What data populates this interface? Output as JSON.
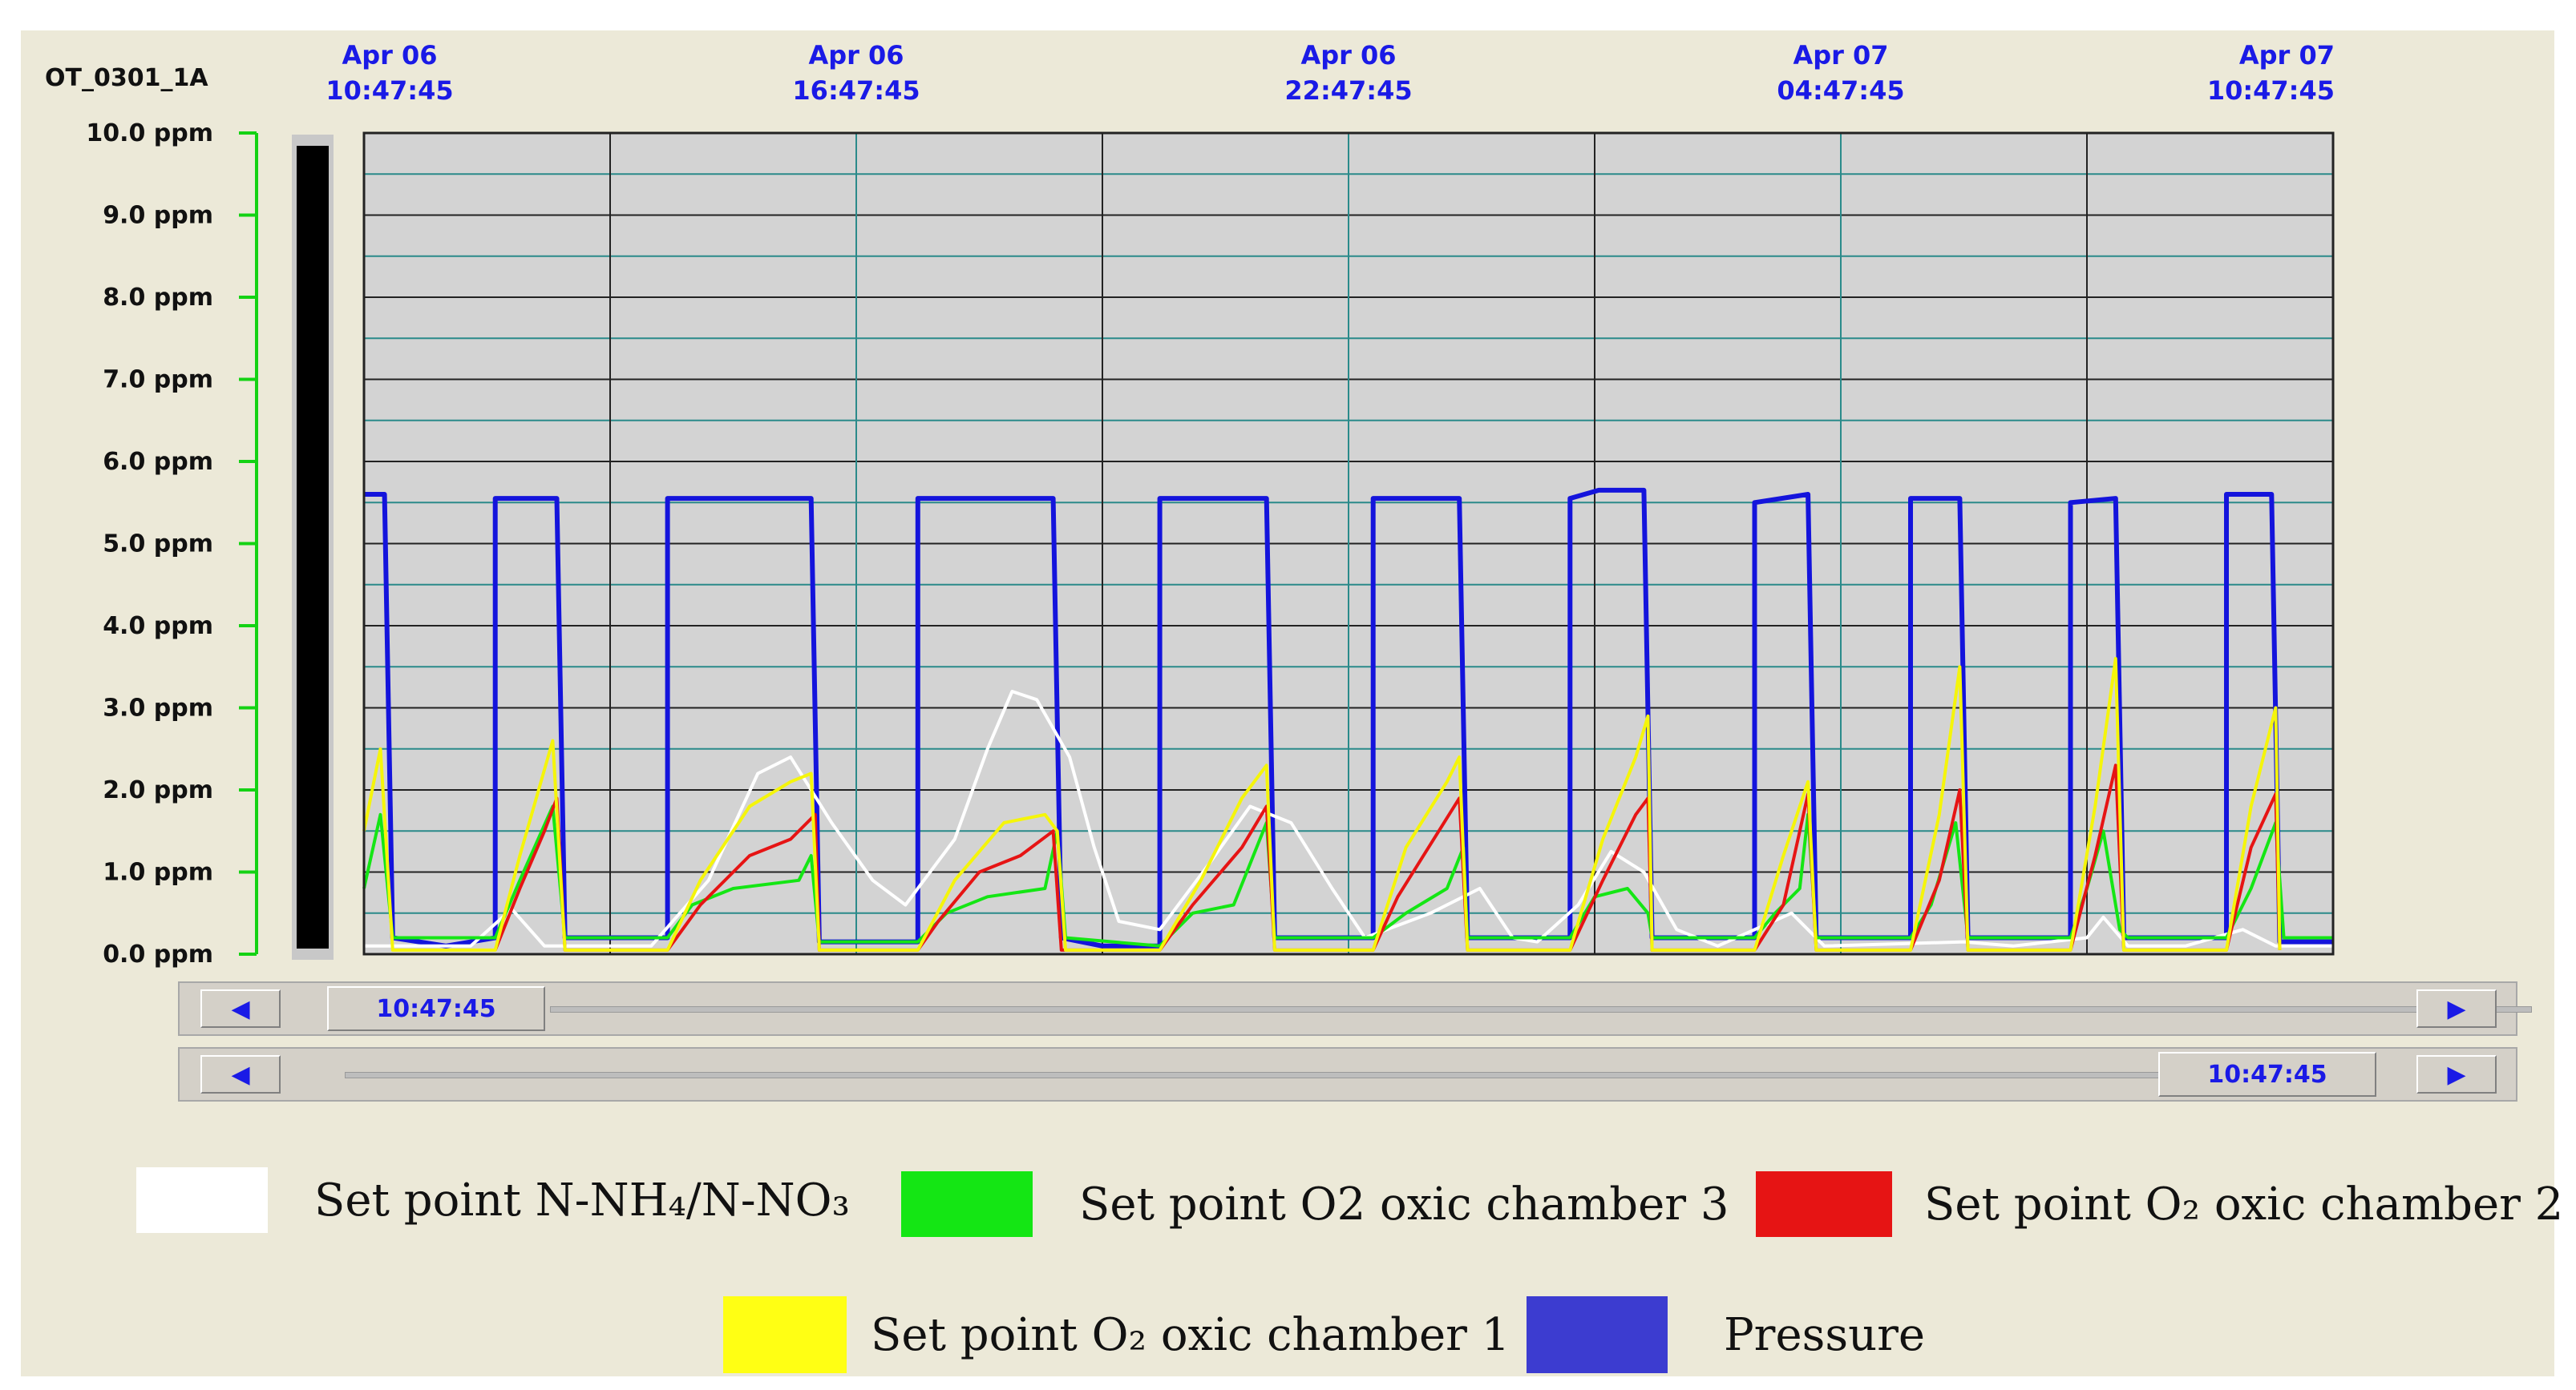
{
  "chart_data": {
    "type": "line",
    "title": "OT_0301_1A",
    "y_unit": "ppm",
    "ylim": [
      0,
      10
    ],
    "y_ticks": [
      "0.0 ppm",
      "1.0 ppm",
      "2.0 ppm",
      "3.0 ppm",
      "4.0 ppm",
      "5.0 ppm",
      "6.0 ppm",
      "7.0 ppm",
      "8.0 ppm",
      "9.0 ppm",
      "10.0 ppm"
    ],
    "x_ticks": [
      {
        "date": "Apr 06",
        "time": "10:47:45"
      },
      {
        "date": "Apr 06",
        "time": "16:47:45"
      },
      {
        "date": "Apr 06",
        "time": "22:47:45"
      },
      {
        "date": "Apr 07",
        "time": "04:47:45"
      },
      {
        "date": "Apr 07",
        "time": "10:47:45"
      }
    ],
    "x_range_hours": [
      0,
      24
    ],
    "grid": true,
    "legend_placement": "bottom",
    "series": [
      {
        "name": "Pressure",
        "color": "#1414dc",
        "points": [
          [
            0,
            5.6
          ],
          [
            0.25,
            5.6
          ],
          [
            0.35,
            0.2
          ],
          [
            1.0,
            0.1
          ],
          [
            1.6,
            0.2
          ],
          [
            1.6,
            5.55
          ],
          [
            2.35,
            5.55
          ],
          [
            2.45,
            0.2
          ],
          [
            3.7,
            0.2
          ],
          [
            3.7,
            5.55
          ],
          [
            5.45,
            5.55
          ],
          [
            5.55,
            0.15
          ],
          [
            6.75,
            0.15
          ],
          [
            6.75,
            5.55
          ],
          [
            8.4,
            5.55
          ],
          [
            8.5,
            0.2
          ],
          [
            9.0,
            0.1
          ],
          [
            9.7,
            0.1
          ],
          [
            9.7,
            5.55
          ],
          [
            11.0,
            5.55
          ],
          [
            11.1,
            0.2
          ],
          [
            12.3,
            0.2
          ],
          [
            12.3,
            5.55
          ],
          [
            13.35,
            5.55
          ],
          [
            13.45,
            0.2
          ],
          [
            14.7,
            0.2
          ],
          [
            14.7,
            5.55
          ],
          [
            15.05,
            5.65
          ],
          [
            15.6,
            5.65
          ],
          [
            15.7,
            0.2
          ],
          [
            16.95,
            0.2
          ],
          [
            16.95,
            5.5
          ],
          [
            17.6,
            5.6
          ],
          [
            17.7,
            0.2
          ],
          [
            18.85,
            0.2
          ],
          [
            18.85,
            5.55
          ],
          [
            19.45,
            5.55
          ],
          [
            19.55,
            0.2
          ],
          [
            20.8,
            0.2
          ],
          [
            20.8,
            5.5
          ],
          [
            21.35,
            5.55
          ],
          [
            21.45,
            0.2
          ],
          [
            22.7,
            0.2
          ],
          [
            22.7,
            5.6
          ],
          [
            23.25,
            5.6
          ],
          [
            23.35,
            0.15
          ],
          [
            24,
            0.15
          ]
        ]
      },
      {
        "name": "Set point N-NH₄/N-NO₃",
        "color": "#ffffff",
        "points": [
          [
            0,
            0.1
          ],
          [
            1.3,
            0.1
          ],
          [
            1.8,
            0.55
          ],
          [
            2.2,
            0.1
          ],
          [
            3.5,
            0.1
          ],
          [
            4.2,
            0.9
          ],
          [
            4.8,
            2.2
          ],
          [
            5.2,
            2.4
          ],
          [
            5.7,
            1.6
          ],
          [
            6.2,
            0.9
          ],
          [
            6.6,
            0.6
          ],
          [
            7.2,
            1.4
          ],
          [
            7.6,
            2.5
          ],
          [
            7.9,
            3.2
          ],
          [
            8.2,
            3.1
          ],
          [
            8.6,
            2.4
          ],
          [
            8.9,
            1.3
          ],
          [
            9.2,
            0.4
          ],
          [
            9.7,
            0.3
          ],
          [
            10.3,
            1.1
          ],
          [
            10.8,
            1.8
          ],
          [
            11.3,
            1.6
          ],
          [
            11.8,
            0.8
          ],
          [
            12.2,
            0.2
          ],
          [
            13.0,
            0.5
          ],
          [
            13.6,
            0.8
          ],
          [
            14.0,
            0.2
          ],
          [
            14.3,
            0.15
          ],
          [
            14.8,
            0.6
          ],
          [
            15.2,
            1.25
          ],
          [
            15.6,
            1.0
          ],
          [
            16.0,
            0.3
          ],
          [
            16.5,
            0.1
          ],
          [
            17.4,
            0.5
          ],
          [
            17.8,
            0.1
          ],
          [
            19.5,
            0.15
          ],
          [
            20.1,
            0.1
          ],
          [
            21.0,
            0.2
          ],
          [
            21.2,
            0.45
          ],
          [
            21.5,
            0.1
          ],
          [
            22.2,
            0.1
          ],
          [
            22.9,
            0.3
          ],
          [
            23.3,
            0.1
          ],
          [
            24,
            0.1
          ]
        ]
      },
      {
        "name": "Set point O2 oxic chamber 3",
        "color": "#14e614",
        "points": [
          [
            0,
            0.8
          ],
          [
            0.2,
            1.7
          ],
          [
            0.35,
            0.2
          ],
          [
            1.6,
            0.2
          ],
          [
            1.9,
            0.9
          ],
          [
            2.3,
            1.8
          ],
          [
            2.45,
            0.2
          ],
          [
            3.7,
            0.2
          ],
          [
            4.0,
            0.6
          ],
          [
            4.5,
            0.8
          ],
          [
            5.3,
            0.9
          ],
          [
            5.45,
            1.2
          ],
          [
            5.55,
            0.15
          ],
          [
            6.75,
            0.15
          ],
          [
            7.1,
            0.5
          ],
          [
            7.6,
            0.7
          ],
          [
            8.3,
            0.8
          ],
          [
            8.45,
            1.5
          ],
          [
            8.55,
            0.2
          ],
          [
            9.7,
            0.1
          ],
          [
            10.1,
            0.5
          ],
          [
            10.6,
            0.6
          ],
          [
            11.0,
            1.6
          ],
          [
            11.1,
            0.2
          ],
          [
            12.3,
            0.2
          ],
          [
            12.7,
            0.5
          ],
          [
            13.2,
            0.8
          ],
          [
            13.4,
            1.3
          ],
          [
            13.45,
            0.2
          ],
          [
            14.7,
            0.2
          ],
          [
            15.0,
            0.7
          ],
          [
            15.4,
            0.8
          ],
          [
            15.65,
            0.5
          ],
          [
            15.7,
            0.2
          ],
          [
            16.95,
            0.2
          ],
          [
            17.2,
            0.5
          ],
          [
            17.5,
            0.8
          ],
          [
            17.6,
            1.7
          ],
          [
            17.7,
            0.2
          ],
          [
            18.85,
            0.2
          ],
          [
            19.1,
            0.6
          ],
          [
            19.4,
            1.6
          ],
          [
            19.55,
            0.2
          ],
          [
            20.8,
            0.2
          ],
          [
            21.0,
            0.8
          ],
          [
            21.2,
            1.5
          ],
          [
            21.4,
            0.3
          ],
          [
            21.5,
            0.2
          ],
          [
            22.7,
            0.2
          ],
          [
            23.0,
            0.8
          ],
          [
            23.3,
            1.6
          ],
          [
            23.4,
            0.2
          ],
          [
            24,
            0.2
          ]
        ]
      },
      {
        "name": "Set point O₂ oxic chamber 2",
        "color": "#e61414",
        "points": [
          [
            1.6,
            0.05
          ],
          [
            1.9,
            0.8
          ],
          [
            2.2,
            1.5
          ],
          [
            2.35,
            1.9
          ],
          [
            2.45,
            0.05
          ],
          [
            3.7,
            0.05
          ],
          [
            4.1,
            0.6
          ],
          [
            4.7,
            1.2
          ],
          [
            5.2,
            1.4
          ],
          [
            5.5,
            1.7
          ],
          [
            5.55,
            0.05
          ],
          [
            6.75,
            0.05
          ],
          [
            7.0,
            0.4
          ],
          [
            7.5,
            1.0
          ],
          [
            8.0,
            1.2
          ],
          [
            8.4,
            1.5
          ],
          [
            8.5,
            0.05
          ],
          [
            9.7,
            0.05
          ],
          [
            10.1,
            0.6
          ],
          [
            10.7,
            1.3
          ],
          [
            11.0,
            1.8
          ],
          [
            11.1,
            0.05
          ],
          [
            12.3,
            0.05
          ],
          [
            12.6,
            0.7
          ],
          [
            13.1,
            1.5
          ],
          [
            13.35,
            1.9
          ],
          [
            13.45,
            0.05
          ],
          [
            14.7,
            0.05
          ],
          [
            15.1,
            0.9
          ],
          [
            15.5,
            1.7
          ],
          [
            15.65,
            1.9
          ],
          [
            15.7,
            0.05
          ],
          [
            16.95,
            0.05
          ],
          [
            17.3,
            0.6
          ],
          [
            17.6,
            1.95
          ],
          [
            17.7,
            0.05
          ],
          [
            18.85,
            0.05
          ],
          [
            19.2,
            0.9
          ],
          [
            19.45,
            2.0
          ],
          [
            19.55,
            0.05
          ],
          [
            20.8,
            0.05
          ],
          [
            21.1,
            1.2
          ],
          [
            21.35,
            2.3
          ],
          [
            21.45,
            0.05
          ],
          [
            22.7,
            0.05
          ],
          [
            23.0,
            1.3
          ],
          [
            23.3,
            1.95
          ],
          [
            23.35,
            0.05
          ]
        ]
      },
      {
        "name": "Set point O₂ oxic chamber 1",
        "color": "#f5f50a",
        "points": [
          [
            0,
            1.5
          ],
          [
            0.2,
            2.5
          ],
          [
            0.35,
            0.05
          ],
          [
            1.6,
            0.05
          ],
          [
            1.9,
            1.2
          ],
          [
            2.3,
            2.6
          ],
          [
            2.45,
            0.05
          ],
          [
            3.7,
            0.05
          ],
          [
            4.1,
            0.9
          ],
          [
            4.7,
            1.8
          ],
          [
            5.2,
            2.1
          ],
          [
            5.45,
            2.2
          ],
          [
            5.55,
            0.05
          ],
          [
            6.75,
            0.05
          ],
          [
            7.2,
            0.9
          ],
          [
            7.8,
            1.6
          ],
          [
            8.3,
            1.7
          ],
          [
            8.45,
            1.5
          ],
          [
            8.55,
            0.05
          ],
          [
            9.7,
            0.05
          ],
          [
            10.2,
            0.9
          ],
          [
            10.7,
            1.9
          ],
          [
            11.0,
            2.3
          ],
          [
            11.1,
            0.05
          ],
          [
            12.3,
            0.05
          ],
          [
            12.7,
            1.3
          ],
          [
            13.2,
            2.1
          ],
          [
            13.35,
            2.4
          ],
          [
            13.45,
            0.05
          ],
          [
            14.7,
            0.05
          ],
          [
            15.1,
            1.4
          ],
          [
            15.5,
            2.4
          ],
          [
            15.65,
            2.9
          ],
          [
            15.7,
            0.05
          ],
          [
            16.95,
            0.05
          ],
          [
            17.3,
            1.2
          ],
          [
            17.6,
            2.1
          ],
          [
            17.7,
            0.05
          ],
          [
            18.85,
            0.05
          ],
          [
            19.2,
            1.7
          ],
          [
            19.45,
            3.5
          ],
          [
            19.55,
            0.05
          ],
          [
            20.8,
            0.05
          ],
          [
            21.1,
            1.8
          ],
          [
            21.35,
            3.6
          ],
          [
            21.45,
            0.05
          ],
          [
            22.7,
            0.05
          ],
          [
            23.0,
            1.8
          ],
          [
            23.3,
            3.0
          ],
          [
            23.35,
            0.05
          ]
        ]
      }
    ]
  },
  "scrollbars": {
    "top_thumb_time": "10:47:45",
    "bottom_thumb_time": "10:47:45",
    "left_arrow": "◀",
    "right_arrow": "▶"
  },
  "legend": [
    {
      "label": "Set point N-NH₄/N-NO₃",
      "color": "#ffffff"
    },
    {
      "label": "Set point O2 oxic chamber 3",
      "color": "#14e614"
    },
    {
      "label": "Set point O₂ oxic chamber 2",
      "color": "#e61414"
    },
    {
      "label": "Set point O₂ oxic chamber 1",
      "color": "#ffff14"
    },
    {
      "label": "Pressure",
      "color": "#3c3cd0"
    }
  ]
}
